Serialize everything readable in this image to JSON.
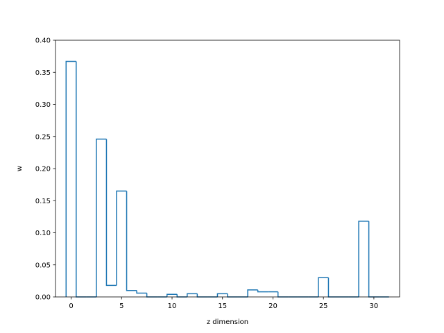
{
  "chart_data": {
    "type": "step",
    "style": "histogram-step",
    "color": "#1f77b4",
    "xlabel": "z dimension",
    "ylabel": "w",
    "xlim": [
      -1.55,
      32.55
    ],
    "ylim": [
      0.0,
      0.4
    ],
    "xticks": [
      0,
      5,
      10,
      15,
      20,
      25,
      30
    ],
    "yticks": [
      0.0,
      0.05,
      0.1,
      0.15,
      0.2,
      0.25,
      0.3,
      0.35,
      0.4
    ],
    "ytick_labels": [
      "0.00",
      "0.05",
      "0.10",
      "0.15",
      "0.20",
      "0.25",
      "0.30",
      "0.35",
      "0.40"
    ],
    "bins": [
      {
        "x": 0,
        "value": 0.367
      },
      {
        "x": 1,
        "value": 0.0
      },
      {
        "x": 2,
        "value": 0.0
      },
      {
        "x": 3,
        "value": 0.246
      },
      {
        "x": 4,
        "value": 0.018
      },
      {
        "x": 5,
        "value": 0.165
      },
      {
        "x": 6,
        "value": 0.01
      },
      {
        "x": 7,
        "value": 0.006
      },
      {
        "x": 8,
        "value": 0.0
      },
      {
        "x": 9,
        "value": 0.0
      },
      {
        "x": 10,
        "value": 0.004
      },
      {
        "x": 11,
        "value": 0.0
      },
      {
        "x": 12,
        "value": 0.005
      },
      {
        "x": 13,
        "value": 0.0
      },
      {
        "x": 14,
        "value": 0.0
      },
      {
        "x": 15,
        "value": 0.005
      },
      {
        "x": 16,
        "value": 0.0
      },
      {
        "x": 17,
        "value": 0.0
      },
      {
        "x": 18,
        "value": 0.011
      },
      {
        "x": 19,
        "value": 0.008
      },
      {
        "x": 20,
        "value": 0.008
      },
      {
        "x": 21,
        "value": 0.0
      },
      {
        "x": 22,
        "value": 0.0
      },
      {
        "x": 23,
        "value": 0.0
      },
      {
        "x": 24,
        "value": 0.0
      },
      {
        "x": 25,
        "value": 0.03
      },
      {
        "x": 26,
        "value": 0.0
      },
      {
        "x": 27,
        "value": 0.0
      },
      {
        "x": 28,
        "value": 0.0
      },
      {
        "x": 29,
        "value": 0.118
      },
      {
        "x": 30,
        "value": 0.0
      },
      {
        "x": 31,
        "value": 0.0
      }
    ]
  }
}
